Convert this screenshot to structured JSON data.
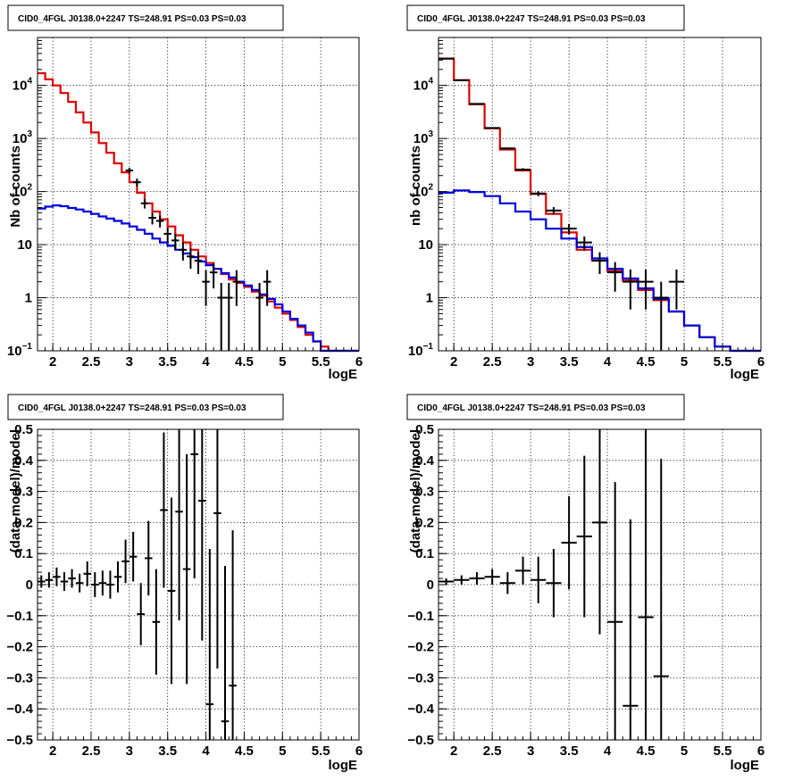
{
  "chart_data": [
    {
      "type": "line",
      "title": "CID0_4FGL J0138.0+2247 TS=248.91 PS=0.03 PS=0.03",
      "xlabel": "logE",
      "ylabel": "Nb of counts",
      "xlim": [
        1.8,
        6.0
      ],
      "ylim": [
        0.1,
        80000
      ],
      "yscale": "log",
      "grid": true,
      "xticks": [
        "2",
        "2.5",
        "3",
        "3.5",
        "4",
        "4.5",
        "5",
        "5.5",
        "6"
      ],
      "yticks": [
        {
          "value": 0.1,
          "label": "10",
          "exp": "−1"
        },
        {
          "value": 1,
          "label": "1",
          "exp": ""
        },
        {
          "value": 10,
          "label": "10",
          "exp": ""
        },
        {
          "value": 100,
          "label": "10",
          "exp": "2"
        },
        {
          "value": 1000,
          "label": "10",
          "exp": "3"
        },
        {
          "value": 10000,
          "label": "10",
          "exp": "4"
        }
      ],
      "bin_edges": [
        1.8,
        1.9,
        2.0,
        2.1,
        2.2,
        2.3,
        2.4,
        2.5,
        2.6,
        2.7,
        2.8,
        2.9,
        3.0,
        3.1,
        3.2,
        3.3,
        3.4,
        3.5,
        3.6,
        3.7,
        3.8,
        3.9,
        4.0,
        4.1,
        4.2,
        4.3,
        4.4,
        4.5,
        4.6,
        4.7,
        4.8,
        4.9,
        5.0,
        5.1,
        5.2,
        5.3,
        5.4,
        5.5,
        5.6,
        5.7,
        5.8,
        5.9,
        6.0
      ],
      "series": [
        {
          "role": "model-total",
          "color": "#e00000",
          "values": [
            17000,
            13000,
            10000,
            7200,
            4900,
            3100,
            2000,
            1300,
            820,
            540,
            340,
            230,
            150,
            95,
            60,
            42,
            30,
            22,
            15,
            11,
            8,
            6,
            4.5,
            3.5,
            2.8,
            2.2,
            1.9,
            1.6,
            1.3,
            1.1,
            0.85,
            0.65,
            0.5,
            0.38,
            0.28,
            0.2,
            0.15,
            0.12,
            0.1,
            0.1,
            0.1,
            0.1
          ]
        },
        {
          "role": "model-background",
          "color": "#0000e0",
          "values": [
            48,
            52,
            55,
            53,
            49,
            46,
            42,
            38,
            34,
            31,
            28,
            25,
            22,
            19,
            16,
            13,
            11,
            9.5,
            8,
            6.8,
            5.8,
            4.8,
            4.1,
            3.5,
            2.9,
            2.4,
            2.0,
            1.7,
            1.4,
            1.15,
            0.95,
            0.75,
            0.55,
            0.4,
            0.3,
            0.22,
            0.15,
            0.1,
            0.1,
            0.1,
            0.1,
            0.1
          ]
        },
        {
          "role": "data",
          "color": "#000000",
          "points": [
            [
              3.0,
              250,
              30
            ],
            [
              3.1,
              150,
              25
            ],
            [
              3.2,
              60,
              12
            ],
            [
              3.3,
              32,
              8
            ],
            [
              3.4,
              28,
              7
            ],
            [
              3.5,
              16,
              5
            ],
            [
              3.6,
              12,
              4
            ],
            [
              3.7,
              8,
              3
            ],
            [
              3.8,
              6,
              2.5
            ],
            [
              3.9,
              5,
              2.2
            ],
            [
              4.0,
              2,
              1.3
            ],
            [
              4.1,
              3,
              1.5
            ],
            [
              4.2,
              1,
              0.9
            ],
            [
              4.3,
              1,
              0.9
            ],
            [
              4.4,
              2,
              1.3
            ],
            [
              4.7,
              1,
              0.9
            ],
            [
              4.8,
              2,
              1.3
            ]
          ]
        }
      ]
    },
    {
      "type": "line",
      "title": "CID0_4FGL J0138.0+2247 TS=248.91 PS=0.03 PS=0.03",
      "xlabel": "logE",
      "ylabel": "nb of counts",
      "xlim": [
        1.8,
        6.0
      ],
      "ylim": [
        0.1,
        80000
      ],
      "yscale": "log",
      "grid": true,
      "xticks": [
        "2",
        "2.5",
        "3",
        "3.5",
        "4",
        "4.5",
        "5",
        "5.5",
        "6"
      ],
      "yticks": [
        {
          "value": 0.1,
          "label": "10",
          "exp": "−1"
        },
        {
          "value": 1,
          "label": "1",
          "exp": ""
        },
        {
          "value": 10,
          "label": "10",
          "exp": ""
        },
        {
          "value": 100,
          "label": "10",
          "exp": "2"
        },
        {
          "value": 1000,
          "label": "10",
          "exp": "3"
        },
        {
          "value": 10000,
          "label": "10",
          "exp": "4"
        }
      ],
      "bin_edges": [
        1.8,
        2.0,
        2.2,
        2.4,
        2.6,
        2.8,
        3.0,
        3.2,
        3.4,
        3.6,
        3.8,
        4.0,
        4.2,
        4.4,
        4.6,
        4.8,
        5.0,
        5.2,
        5.4,
        5.6,
        5.8,
        6.0
      ],
      "series": [
        {
          "role": "model-total",
          "color": "#e00000",
          "values": [
            32000,
            12500,
            4400,
            1550,
            620,
            250,
            90,
            38,
            17,
            8,
            5,
            3.2,
            2.1,
            1.4,
            0.9,
            0.55,
            0.3,
            0.18,
            0.12,
            0.1,
            0.1
          ]
        },
        {
          "role": "model-background",
          "color": "#0000e0",
          "values": [
            95,
            105,
            98,
            82,
            60,
            42,
            30,
            20,
            13,
            9,
            5.5,
            3.5,
            2.3,
            1.5,
            0.95,
            0.55,
            0.3,
            0.18,
            0.12,
            0.1,
            0.1
          ]
        },
        {
          "role": "data",
          "color": "#000000",
          "points": [
            [
              1.9,
              32000,
              180
            ],
            [
              2.1,
              12500,
              110
            ],
            [
              2.3,
              4500,
              67
            ],
            [
              2.5,
              1580,
              40
            ],
            [
              2.7,
              650,
              25
            ],
            [
              2.9,
              260,
              16
            ],
            [
              3.1,
              92,
              10
            ],
            [
              3.3,
              44,
              7
            ],
            [
              3.5,
              20,
              4.5
            ],
            [
              3.7,
              11,
              3.3
            ],
            [
              3.9,
              5,
              2.2
            ],
            [
              4.1,
              3,
              1.7
            ],
            [
              4.3,
              2,
              1.4
            ],
            [
              4.5,
              2,
              1.4
            ],
            [
              4.7,
              1,
              1.0
            ],
            [
              4.9,
              2,
              1.4
            ]
          ]
        }
      ]
    },
    {
      "type": "scatter",
      "title": "CID0_4FGL J0138.0+2247 TS=248.91 PS=0.03 PS=0.03",
      "xlabel": "logE",
      "ylabel": "(data-model)/model",
      "xlim": [
        1.8,
        6.0
      ],
      "ylim": [
        -0.5,
        0.5
      ],
      "grid": true,
      "xticks": [
        "2",
        "2.5",
        "3",
        "3.5",
        "4",
        "4.5",
        "5",
        "5.5",
        "6"
      ],
      "yticks": [
        "−0.5",
        "−0.4",
        "−0.3",
        "−0.2",
        "−0.1",
        "0",
        "0.1",
        "0.2",
        "0.3",
        "0.4",
        "0.5"
      ],
      "xhalf": 0.05,
      "points": [
        [
          1.85,
          0.01,
          0.02
        ],
        [
          1.95,
          0.015,
          0.025
        ],
        [
          2.05,
          0.025,
          0.03
        ],
        [
          2.15,
          0.01,
          0.03
        ],
        [
          2.25,
          0.02,
          0.03
        ],
        [
          2.35,
          0.005,
          0.03
        ],
        [
          2.45,
          0.035,
          0.04
        ],
        [
          2.55,
          0.0,
          0.04
        ],
        [
          2.65,
          0.005,
          0.04
        ],
        [
          2.75,
          0.0,
          0.045
        ],
        [
          2.85,
          0.025,
          0.05
        ],
        [
          2.95,
          0.075,
          0.07
        ],
        [
          3.05,
          0.09,
          0.08
        ],
        [
          3.15,
          -0.095,
          0.1
        ],
        [
          3.25,
          0.085,
          0.12
        ],
        [
          3.35,
          -0.12,
          0.17
        ],
        [
          3.45,
          0.24,
          0.25
        ],
        [
          3.55,
          -0.02,
          0.3
        ],
        [
          3.65,
          0.235,
          0.35
        ],
        [
          3.75,
          0.05,
          0.37
        ],
        [
          3.85,
          0.42,
          0.4
        ],
        [
          3.95,
          0.27,
          0.45
        ],
        [
          4.05,
          -0.385,
          0.5
        ],
        [
          4.15,
          0.23,
          0.5
        ],
        [
          4.25,
          -0.44,
          0.5
        ],
        [
          4.35,
          -0.325,
          0.5
        ]
      ]
    },
    {
      "type": "scatter",
      "title": "CID0_4FGL J0138.0+2247 TS=248.91 PS=0.03 PS=0.03",
      "xlabel": "logE",
      "ylabel": "(data-model)/model",
      "xlim": [
        1.8,
        6.0
      ],
      "ylim": [
        -0.5,
        0.5
      ],
      "grid": true,
      "xticks": [
        "2",
        "2.5",
        "3",
        "3.5",
        "4",
        "4.5",
        "5",
        "5.5",
        "6"
      ],
      "yticks": [
        "−0.5",
        "−0.4",
        "−0.3",
        "−0.2",
        "−0.1",
        "0",
        "0.1",
        "0.2",
        "0.3",
        "0.4",
        "0.5"
      ],
      "xhalf": 0.1,
      "points": [
        [
          1.9,
          0.01,
          0.01
        ],
        [
          2.1,
          0.015,
          0.015
        ],
        [
          2.3,
          0.02,
          0.02
        ],
        [
          2.5,
          0.025,
          0.025
        ],
        [
          2.7,
          0.005,
          0.035
        ],
        [
          2.9,
          0.045,
          0.045
        ],
        [
          3.1,
          0.015,
          0.075
        ],
        [
          3.3,
          0.005,
          0.11
        ],
        [
          3.5,
          0.135,
          0.15
        ],
        [
          3.7,
          0.155,
          0.26
        ],
        [
          3.9,
          0.2,
          0.36
        ],
        [
          4.1,
          -0.12,
          0.45
        ],
        [
          4.3,
          -0.39,
          0.6
        ],
        [
          4.5,
          -0.105,
          0.65
        ],
        [
          4.7,
          -0.295,
          0.7
        ]
      ]
    }
  ]
}
